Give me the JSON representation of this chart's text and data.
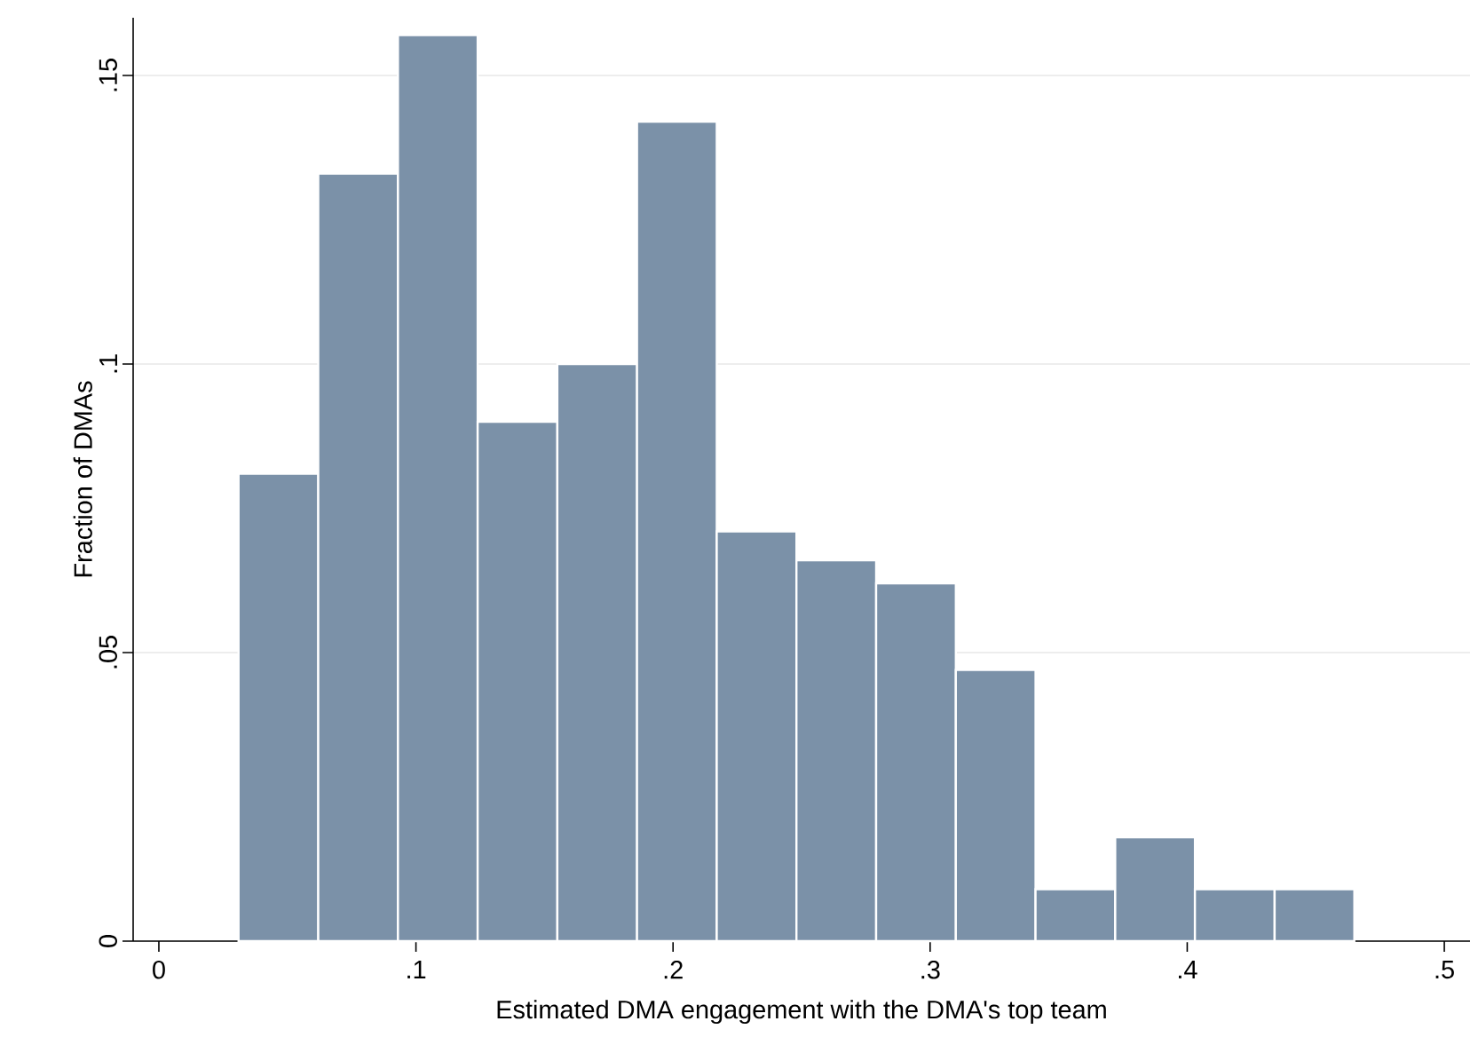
{
  "chart_data": {
    "type": "histogram",
    "xlabel": "Estimated DMA engagement with the DMA's top team",
    "ylabel": "Fraction of DMAs",
    "bins": [
      0.031,
      0.062,
      0.093,
      0.124,
      0.155,
      0.186,
      0.217,
      0.248,
      0.279,
      0.31,
      0.341,
      0.372,
      0.403,
      0.434,
      0.465
    ],
    "values": [
      0.081,
      0.133,
      0.157,
      0.09,
      0.1,
      0.142,
      0.071,
      0.066,
      0.062,
      0.047,
      0.009,
      0.018,
      0.009,
      0.009
    ],
    "color": "#7b91a8",
    "xlim": [
      -0.01,
      0.51
    ],
    "ylim": [
      0,
      0.16
    ],
    "xticks": [
      0,
      {
        "value": 0.1,
        "label": ".1"
      },
      {
        "value": 0.2,
        "label": ".2"
      },
      {
        "value": 0.3,
        "label": ".3"
      },
      {
        "value": 0.4,
        "label": ".4"
      },
      {
        "value": 0.5,
        "label": ".5"
      }
    ],
    "yticks": [
      0,
      {
        "value": 0.05,
        "label": ".05"
      },
      {
        "value": 0.1,
        "label": ".1"
      },
      {
        "value": 0.15,
        "label": ".15"
      }
    ],
    "grid": "y"
  }
}
